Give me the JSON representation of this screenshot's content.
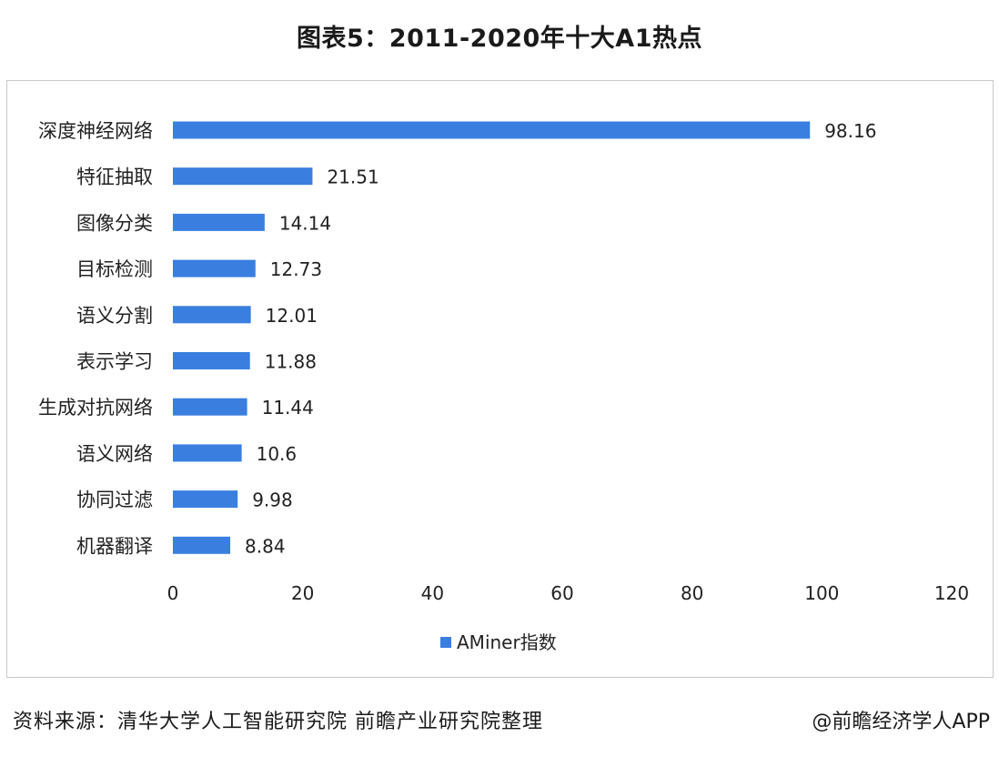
{
  "title": "图表5：2011-2020年十大A1热点",
  "chart_data": {
    "type": "bar",
    "orientation": "horizontal",
    "categories": [
      "深度神经网络",
      "特征抽取",
      "图像分类",
      "目标检测",
      "语义分割",
      "表示学习",
      "生成对抗网络",
      "语义网络",
      "协同过滤",
      "机器翻译"
    ],
    "series": [
      {
        "name": "AMiner指数",
        "values": [
          98.16,
          21.51,
          14.14,
          12.73,
          12.01,
          11.88,
          11.44,
          10.6,
          9.98,
          8.84
        ],
        "labels": [
          "98.16",
          "21.51",
          "14.14",
          "12.73",
          "12.01",
          "11.88",
          "11.44",
          "10.6",
          "9.98",
          "8.84"
        ]
      }
    ],
    "xlim": [
      0,
      120
    ],
    "xticks": [
      "0",
      "20",
      "40",
      "60",
      "80",
      "100",
      "120"
    ],
    "grid": false,
    "legend_position": "bottom",
    "bar_color": "#3a7fe0"
  },
  "footer": {
    "source": "资料来源：清华大学人工智能研究院 前瞻产业研究院整理",
    "credit": "@前瞻经济学人APP"
  }
}
